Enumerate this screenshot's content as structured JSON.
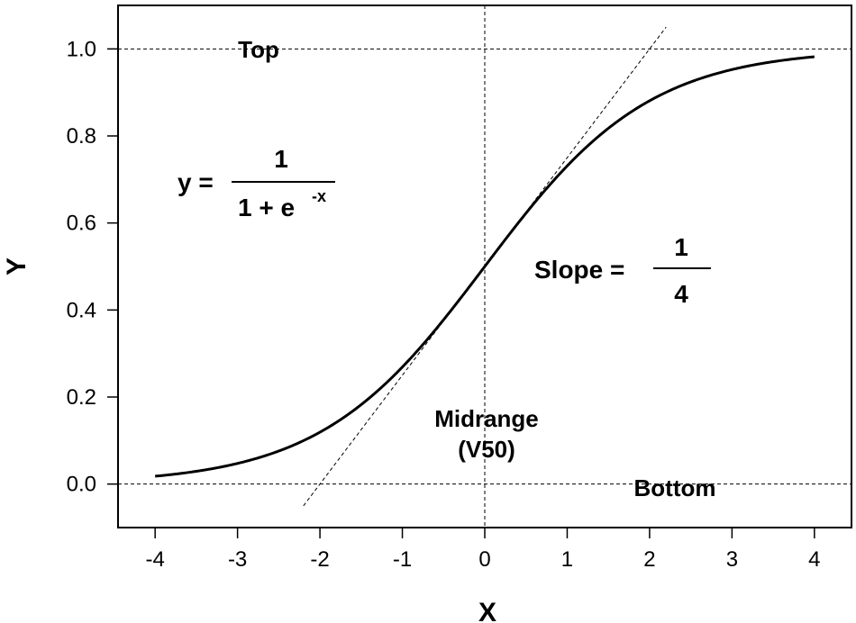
{
  "chart_data": {
    "type": "line",
    "title": "",
    "xlabel": "X",
    "ylabel": "Y",
    "xlim": [
      -4.45,
      4.45
    ],
    "ylim": [
      -0.1,
      1.1
    ],
    "x_ticks": [
      -4,
      -3,
      -2,
      -1,
      0,
      1,
      2,
      3,
      4
    ],
    "x_tick_labels": [
      "-4",
      "-3",
      "-2",
      "-1",
      "0",
      "1",
      "2",
      "3",
      "4"
    ],
    "y_ticks": [
      0.0,
      0.2,
      0.4,
      0.6,
      0.8,
      1.0
    ],
    "y_tick_labels": [
      "0.0",
      "0.2",
      "0.4",
      "0.6",
      "0.8",
      "1.0"
    ],
    "grid": false,
    "series": [
      {
        "function": "logistic",
        "x": [
          -4,
          -3.5,
          -3,
          -2.5,
          -2,
          -1.5,
          -1,
          -0.5,
          0,
          0.5,
          1,
          1.5,
          2,
          2.5,
          3,
          3.5,
          4
        ],
        "y": [
          0.018,
          0.029,
          0.047,
          0.076,
          0.119,
          0.182,
          0.269,
          0.378,
          0.5,
          0.622,
          0.731,
          0.818,
          0.881,
          0.924,
          0.953,
          0.971,
          0.982
        ]
      }
    ],
    "reference_lines": {
      "horizontal": [
        0.0,
        1.0
      ],
      "vertical": [
        0
      ],
      "tangent": {
        "x_start": -2.2,
        "x_end": 2.2,
        "slope": 0.25,
        "intercept": 0.5
      }
    },
    "annotations": {
      "top": "Top",
      "bottom": "Bottom",
      "midrange_line1": "Midrange",
      "midrange_line2": "(V50)",
      "formula_lhs": "y =",
      "formula_numerator": "1",
      "formula_denominator": "1 + e",
      "formula_exponent": "-x",
      "slope_label": "Slope =",
      "slope_numerator": "1",
      "slope_denominator": "4"
    }
  }
}
